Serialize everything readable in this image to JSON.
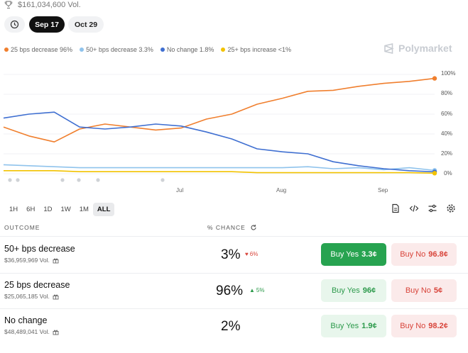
{
  "header": {
    "volume": "$161,034,600 Vol.",
    "tabs": [
      "Sep 17",
      "Oct 29"
    ]
  },
  "legend": [
    {
      "label": "25 bps decrease 96%",
      "color": "#f07f2e"
    },
    {
      "label": "50+ bps decrease 3.3%",
      "color": "#8fc3ec"
    },
    {
      "label": "No change 1.8%",
      "color": "#3f6fd1"
    },
    {
      "label": "25+ bps increase <1%",
      "color": "#f2c200"
    }
  ],
  "brand": "Polymarket",
  "chart": {
    "y_ticks": [
      "100%",
      "80%",
      "60%",
      "40%",
      "20%",
      "0%"
    ],
    "x_ticks": [
      "Jul",
      "Aug",
      "Sep"
    ]
  },
  "chart_data": {
    "type": "line",
    "ylim": [
      0,
      100
    ],
    "x": [
      "Jun 6",
      "Jun 12",
      "Jun 18",
      "Jun 24",
      "Jun 30",
      "Jul 6",
      "Jul 12",
      "Jul 18",
      "Jul 24",
      "Jul 30",
      "Aug 5",
      "Aug 11",
      "Aug 17",
      "Aug 23",
      "Aug 29",
      "Sep 4",
      "Sep 10",
      "Sep 14"
    ],
    "series": [
      {
        "name": "25 bps decrease",
        "color": "#f07f2e",
        "values": [
          47,
          38,
          32,
          45,
          50,
          47,
          44,
          46,
          55,
          60,
          70,
          76,
          83,
          84,
          88,
          91,
          93,
          96
        ]
      },
      {
        "name": "50+ bps decrease",
        "color": "#8fc3ec",
        "values": [
          9,
          8,
          7,
          6,
          6,
          6,
          6,
          6,
          6,
          6,
          6,
          6,
          7,
          5,
          6,
          4,
          6,
          3.3
        ]
      },
      {
        "name": "No change",
        "color": "#3f6fd1",
        "values": [
          56,
          60,
          62,
          47,
          45,
          47,
          50,
          48,
          42,
          35,
          25,
          22,
          20,
          12,
          8,
          5,
          3,
          1.8
        ]
      },
      {
        "name": "25+ bps increase",
        "color": "#f2c200",
        "values": [
          3,
          3,
          3,
          2,
          2,
          2,
          2,
          2,
          2,
          2,
          1,
          1,
          1,
          1,
          1,
          1,
          1,
          0.5
        ]
      }
    ]
  },
  "ranges": [
    "1H",
    "6H",
    "1D",
    "1W",
    "1M",
    "ALL"
  ],
  "table": {
    "col_outcome": "OUTCOME",
    "col_chance": "% CHANCE",
    "rows": [
      {
        "name": "50+ bps decrease",
        "volume": "$36,959,969 Vol.",
        "chance": "3%",
        "delta": "6%",
        "direction": "down",
        "yes_label": "Buy Yes",
        "yes_price": "3.3¢",
        "no_label": "Buy No",
        "no_price": "96.8¢"
      },
      {
        "name": "25 bps decrease",
        "volume": "$25,065,185 Vol.",
        "chance": "96%",
        "delta": "5%",
        "direction": "up",
        "yes_label": "Buy Yes",
        "yes_price": "96¢",
        "no_label": "Buy No",
        "no_price": "5¢"
      },
      {
        "name": "No change",
        "volume": "$48,489,041 Vol.",
        "chance": "2%",
        "delta": "",
        "direction": "",
        "yes_label": "Buy Yes",
        "yes_price": "1.9¢",
        "no_label": "Buy No",
        "no_price": "98.2¢"
      }
    ]
  }
}
